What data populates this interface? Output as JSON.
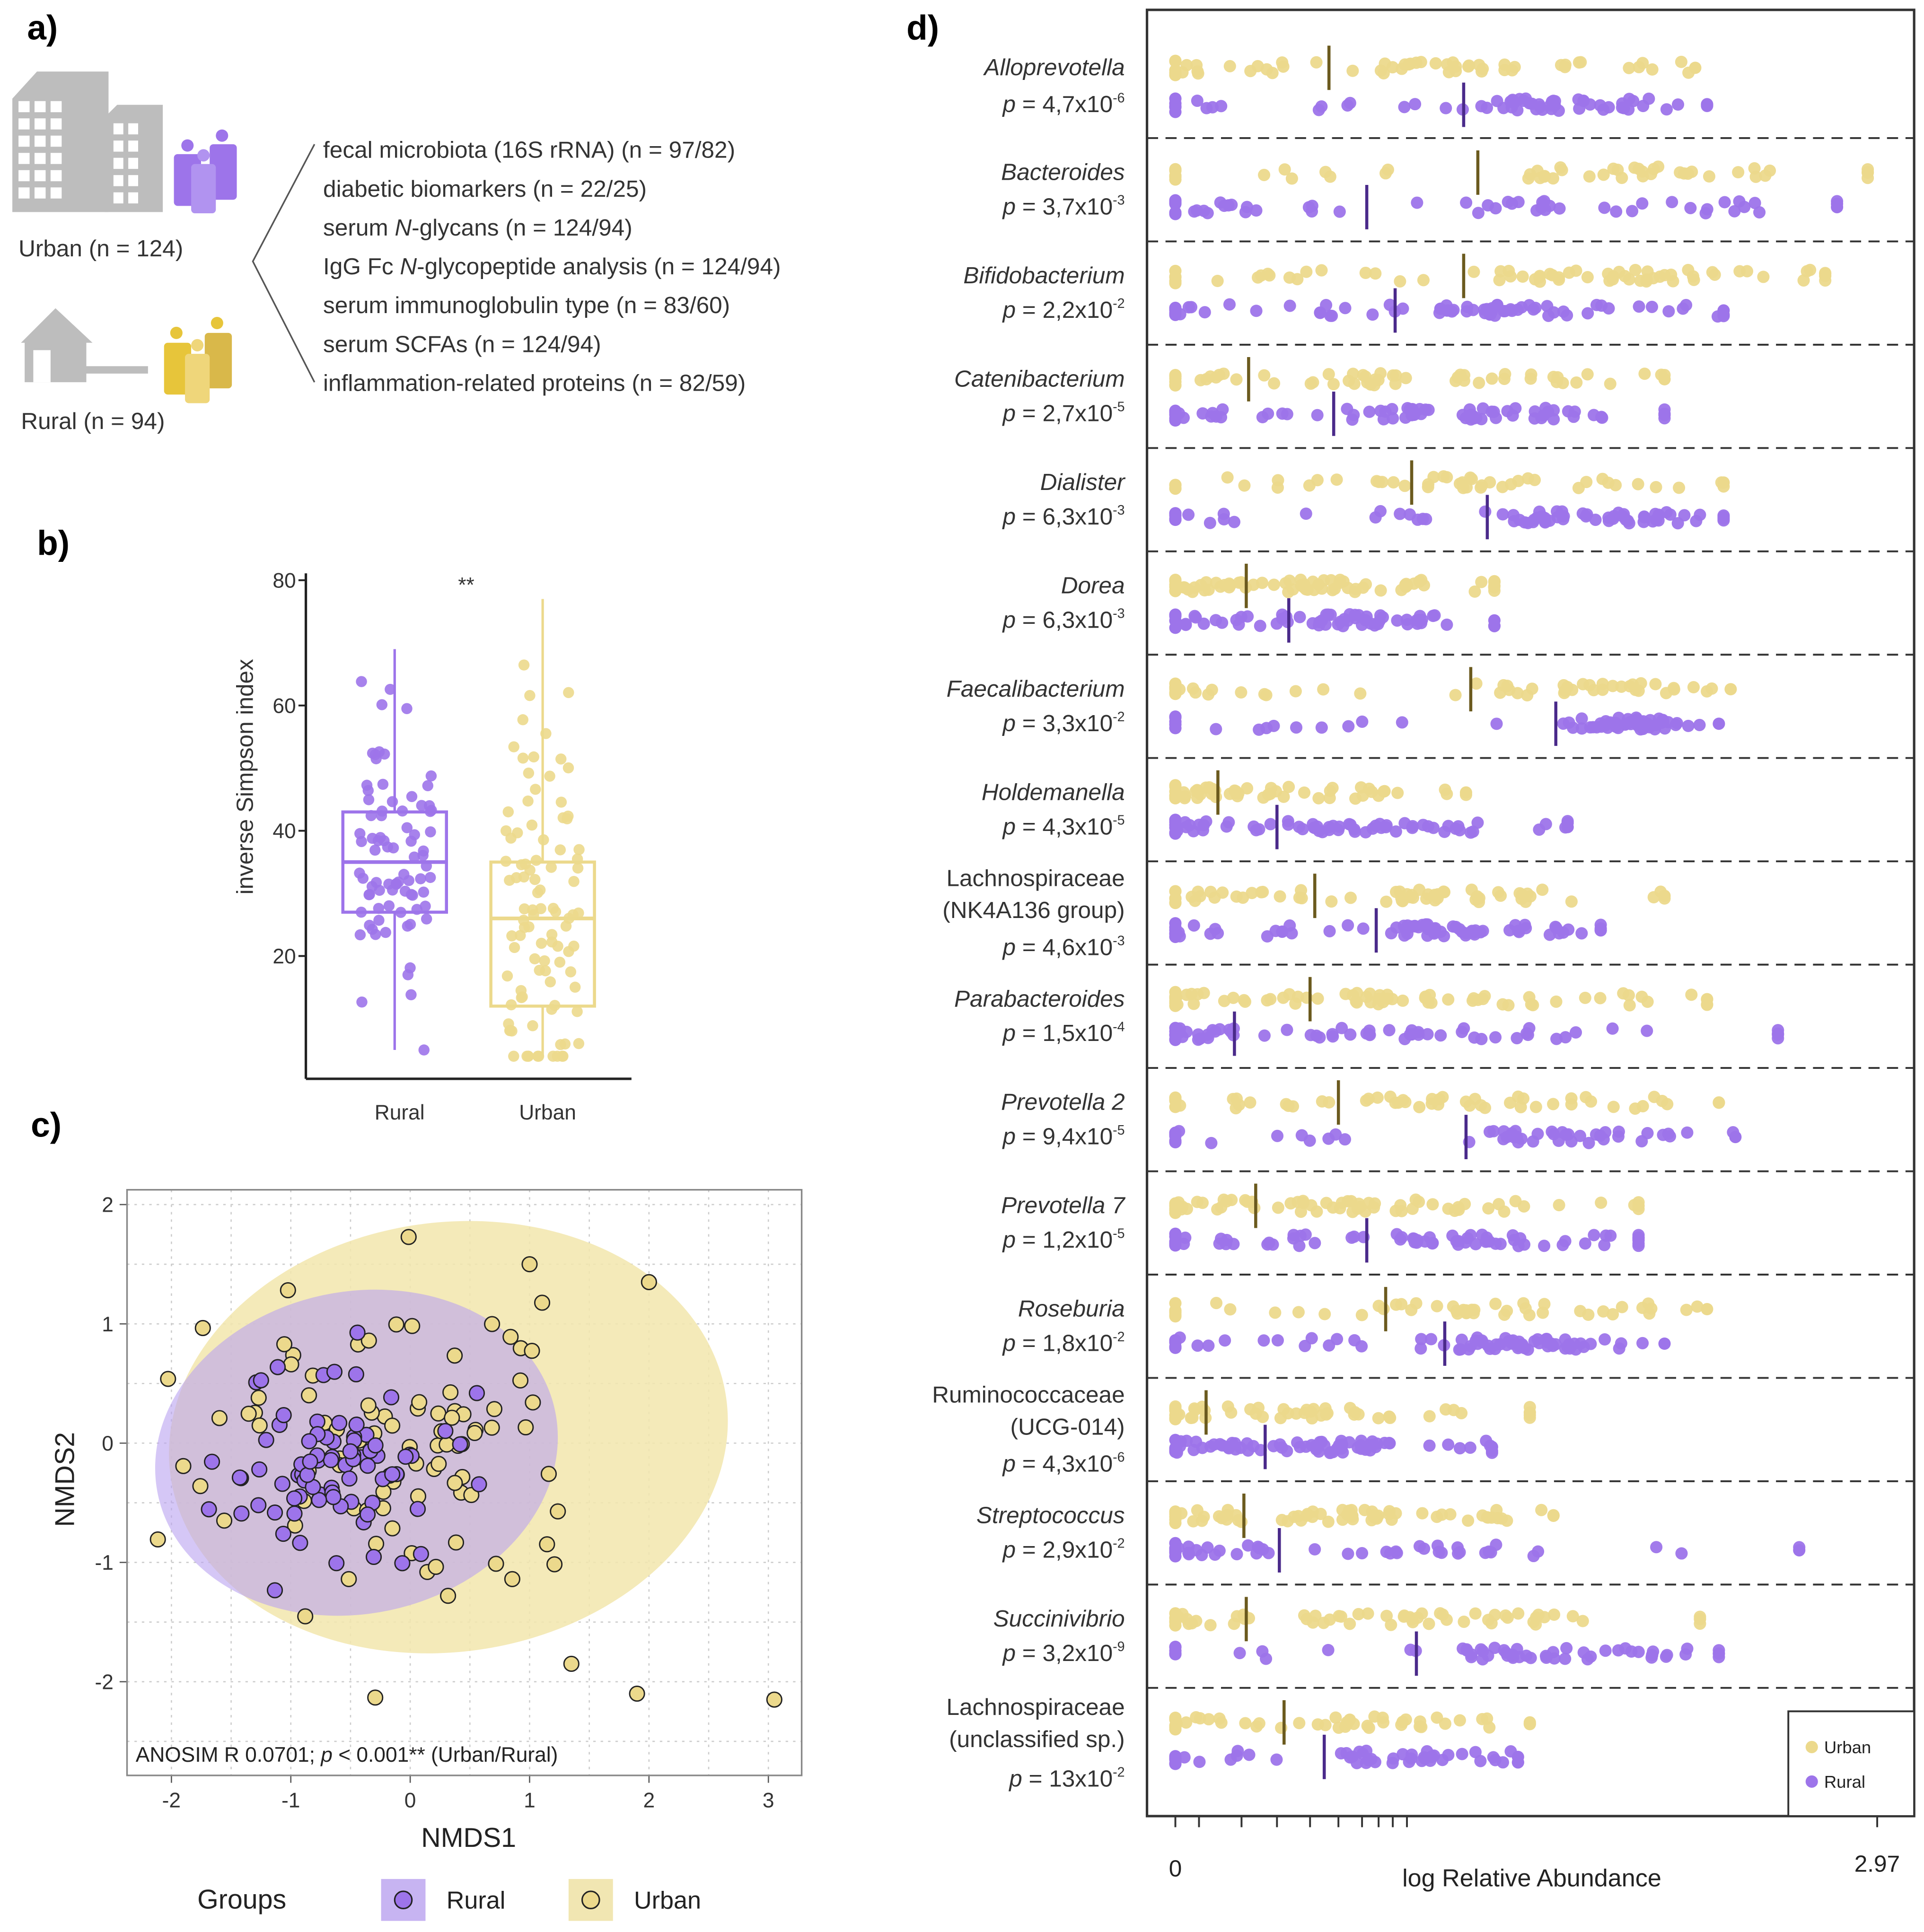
{
  "panel_labels": {
    "a": "a)",
    "b": "b)",
    "c": "c)",
    "d": "d)"
  },
  "colors": {
    "urban": "#ecd98c",
    "rural": "#9d74ea",
    "urban_median": "#6b5a1e",
    "rural_median": "#4a2a8a",
    "building": "#bdbdbd"
  },
  "panel_a": {
    "urban_label": "Urban (n = 124)",
    "rural_label": "Rural (n = 94)",
    "icons": [
      "city-buildings-icon",
      "urban-people-icon",
      "rural-house-icon",
      "rural-people-icon"
    ],
    "items": [
      [
        {
          "t": "fecal microbiota (16S rRNA) (n = 97/82)"
        }
      ],
      [
        {
          "t": "diabetic biomarkers (n = 22/25)"
        }
      ],
      [
        {
          "t": "serum "
        },
        {
          "t": "N",
          "i": true
        },
        {
          "t": "-glycans (n = 124/94)"
        }
      ],
      [
        {
          "t": "IgG Fc "
        },
        {
          "t": "N",
          "i": true
        },
        {
          "t": "-glycopeptide analysis (n = 124/94)"
        }
      ],
      [
        {
          "t": "serum immunoglobulin type (n = 83/60)"
        }
      ],
      [
        {
          "t": "serum SCFAs (n = 124/94)"
        }
      ],
      [
        {
          "t": "inflammation-related proteins (n = 82/59)"
        }
      ]
    ]
  },
  "chart_data": [
    {
      "type": "box",
      "panel": "b",
      "ylabel": "inverse Simpson index",
      "ylim": [
        0,
        80
      ],
      "yticks": [
        "20",
        "40",
        "60",
        "80"
      ],
      "categories": [
        "Rural",
        "Urban"
      ],
      "significance": "**",
      "boxes": [
        {
          "name": "Rural",
          "min": 5,
          "q1": 27,
          "median": 35,
          "q3": 43,
          "max": 69,
          "n": 82
        },
        {
          "name": "Urban",
          "min": 4,
          "q1": 12,
          "median": 26,
          "q3": 35,
          "max": 77,
          "n": 97
        }
      ]
    },
    {
      "type": "scatter",
      "panel": "c",
      "xlabel": "NMDS1",
      "ylabel": "NMDS2",
      "xlim": [
        -2.4,
        3.3
      ],
      "ylim": [
        -2.6,
        2.1
      ],
      "xticks": [
        "-2",
        "-1",
        "0",
        "1",
        "2",
        "3"
      ],
      "yticks": [
        "-2",
        "-1",
        "0",
        "1",
        "2"
      ],
      "grid": true,
      "annotation": [
        {
          "t": "ANOSIM R 0.0701; "
        },
        {
          "t": "p",
          "i": true
        },
        {
          "t": " < 0.001** (Urban/Rural)"
        }
      ],
      "legend": {
        "title": "Groups",
        "placement": "bottom",
        "entries": [
          "Rural",
          "Urban"
        ]
      },
      "series": [
        {
          "name": "Rural",
          "n": 82,
          "center": [
            -0.6,
            -0.15
          ],
          "spread": [
            0.45,
            0.45
          ],
          "ellipse": {
            "center": [
              -0.45,
              -0.08
            ],
            "radii": [
              1.7,
              1.35
            ],
            "angle": -12
          }
        },
        {
          "name": "Urban",
          "n": 97,
          "center": [
            0.1,
            0.0
          ],
          "spread": [
            0.8,
            0.7
          ],
          "ellipse": {
            "center": [
              0.32,
              0.05
            ],
            "radii": [
              2.35,
              1.8
            ],
            "angle": -8
          },
          "outliers": [
            [
              3.05,
              -2.15
            ],
            [
              1.9,
              -2.1
            ],
            [
              1.35,
              -1.85
            ],
            [
              2.0,
              1.35
            ],
            [
              1.0,
              1.5
            ]
          ]
        }
      ]
    },
    {
      "type": "strip",
      "panel": "d",
      "xlabel": "log Relative Abundance",
      "xlim": [
        0,
        2.97
      ],
      "xtick_labels": [
        "0",
        "2.97"
      ],
      "legend": {
        "placement": "bottom-right",
        "entries": [
          "Urban",
          "Rural"
        ]
      },
      "taxa": [
        {
          "name": [
            "Alloprevotella"
          ],
          "italic": true,
          "p_prefix": "p = ",
          "p_mant": "4,7x10",
          "p_exp": "-6",
          "urban_median": 0.65,
          "rural_median": 1.22,
          "urban_max": 2.2,
          "rural_max": 2.25
        },
        {
          "name": [
            "Bacteroides"
          ],
          "italic": true,
          "p_prefix": "p = ",
          "p_mant": "3,7x10",
          "p_exp": "-3",
          "urban_median": 1.28,
          "rural_median": 0.81,
          "urban_max": 2.93,
          "rural_max": 2.8
        },
        {
          "name": [
            "Bifidobacterium"
          ],
          "italic": true,
          "p_prefix": "p = ",
          "p_mant": "2,2x10",
          "p_exp": "-2",
          "urban_median": 1.22,
          "rural_median": 0.93,
          "urban_max": 2.75,
          "rural_max": 2.32
        },
        {
          "name": [
            "Catenibacterium"
          ],
          "italic": true,
          "p_prefix": "p = ",
          "p_mant": "2,7x10",
          "p_exp": "-5",
          "urban_median": 0.31,
          "rural_median": 0.67,
          "urban_max": 2.07,
          "rural_max": 2.07
        },
        {
          "name": [
            "Dialister"
          ],
          "italic": true,
          "p_prefix": "p = ",
          "p_mant": "6,3x10",
          "p_exp": "-3",
          "urban_median": 1.0,
          "rural_median": 1.32,
          "urban_max": 2.32,
          "rural_max": 2.32
        },
        {
          "name": [
            "Dorea"
          ],
          "italic": true,
          "p_prefix": "p = ",
          "p_mant": "6,3x10",
          "p_exp": "-3",
          "urban_median": 0.3,
          "rural_median": 0.48,
          "urban_max": 1.35,
          "rural_max": 1.35
        },
        {
          "name": [
            "Faecalibacterium"
          ],
          "italic": true,
          "p_prefix": "p = ",
          "p_mant": "3,3x10",
          "p_exp": "-2",
          "urban_median": 1.25,
          "rural_median": 1.61,
          "urban_max": 2.35,
          "rural_max": 2.3
        },
        {
          "name": [
            "Holdemanella"
          ],
          "italic": true,
          "p_prefix": "p = ",
          "p_mant": "4,3x10",
          "p_exp": "-5",
          "urban_median": 0.18,
          "rural_median": 0.43,
          "urban_max": 1.23,
          "rural_max": 1.66
        },
        {
          "name": [
            "Lachnospiraceae",
            "(NK4A136 group)"
          ],
          "italic": false,
          "p_prefix": "p = ",
          "p_mant": "4,6x10",
          "p_exp": "-3",
          "urban_median": 0.59,
          "rural_median": 0.85,
          "urban_max": 2.07,
          "rural_max": 1.8
        },
        {
          "name": [
            "Parabacteroides"
          ],
          "italic": true,
          "p_prefix": "p = ",
          "p_mant": "1,5x10",
          "p_exp": "-4",
          "urban_median": 0.57,
          "rural_median": 0.25,
          "urban_max": 2.25,
          "rural_max": 2.55
        },
        {
          "name": [
            "Prevotella 2"
          ],
          "italic": true,
          "p_prefix": "p = ",
          "p_mant": "9,4x10",
          "p_exp": "-5",
          "urban_median": 0.69,
          "rural_median": 1.23,
          "urban_max": 2.3,
          "rural_max": 2.37
        },
        {
          "name": [
            "Prevotella 7"
          ],
          "italic": true,
          "p_prefix": "p = ",
          "p_mant": "1,2x10",
          "p_exp": "-5",
          "urban_median": 0.34,
          "rural_median": 0.81,
          "urban_max": 1.96,
          "rural_max": 1.96
        },
        {
          "name": [
            "Roseburia"
          ],
          "italic": true,
          "p_prefix": "p = ",
          "p_mant": "1,8x10",
          "p_exp": "-2",
          "urban_median": 0.89,
          "rural_median": 1.14,
          "urban_max": 2.25,
          "rural_max": 2.07
        },
        {
          "name": [
            "Ruminococcaceae",
            "(UCG-014)"
          ],
          "italic": false,
          "p_prefix": "p = ",
          "p_mant": "4,3x10",
          "p_exp": "-6",
          "urban_median": 0.13,
          "rural_median": 0.38,
          "urban_max": 1.5,
          "rural_max": 1.34
        },
        {
          "name": [
            "Streptococcus"
          ],
          "italic": true,
          "p_prefix": "p = ",
          "p_mant": "2,9x10",
          "p_exp": "-2",
          "urban_median": 0.29,
          "rural_median": 0.44,
          "urban_max": 1.6,
          "rural_max": 2.64
        },
        {
          "name": [
            "Succinivibrio"
          ],
          "italic": true,
          "p_prefix": "p = ",
          "p_mant": "3,2x10",
          "p_exp": "-9",
          "urban_median": 0.3,
          "rural_median": 1.02,
          "urban_max": 2.22,
          "rural_max": 2.3
        },
        {
          "name": [
            "Lachnospiraceae",
            "(unclassified sp.)"
          ],
          "italic": false,
          "p_prefix": "p = ",
          "p_mant": "13x10",
          "p_exp": "-2",
          "urban_median": 0.46,
          "rural_median": 0.63,
          "urban_max": 1.5,
          "rural_max": 1.45
        }
      ]
    }
  ]
}
